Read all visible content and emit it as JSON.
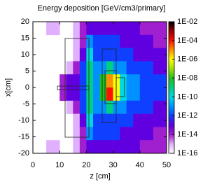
{
  "chart_data": {
    "type": "heatmap",
    "title": "Energy deposition [GeV/cm3/primary]",
    "x_label": "z [cm]",
    "y_label": "x[cm]",
    "xlim": [
      0,
      50
    ],
    "ylim": [
      -20,
      20
    ],
    "xticks": [
      0,
      10,
      20,
      30,
      40,
      50
    ],
    "yticks": [
      -20,
      -15,
      -10,
      -5,
      0,
      5,
      10,
      15,
      20
    ],
    "x": [
      1.25,
      3.75,
      6.25,
      8.75,
      11.25,
      13.75,
      16.25,
      18.75,
      21.25,
      23.75,
      26.25,
      28.75,
      31.25,
      33.75,
      36.25,
      38.75,
      41.25,
      43.75,
      46.25,
      48.75
    ],
    "y": [
      18,
      14,
      10,
      6,
      2,
      -2,
      -6,
      -10,
      -14,
      -18
    ],
    "values": [
      [
        null,
        null,
        1e-15,
        1e-15,
        null,
        null,
        1e-15,
        1e-14,
        1e-13,
        1e-13,
        1e-13,
        1e-13,
        1e-13,
        1e-13,
        1e-13,
        1e-13,
        1e-14,
        1e-14,
        1e-14,
        1e-14
      ],
      [
        null,
        null,
        null,
        null,
        null,
        null,
        1e-15,
        1e-14,
        1e-11,
        1e-12,
        1e-12,
        1e-12,
        1e-12,
        1e-13,
        1e-13,
        1e-13,
        1e-13,
        1e-13,
        1e-14,
        1e-14
      ],
      [
        null,
        null,
        null,
        null,
        null,
        null,
        1e-15,
        1e-13,
        1e-10,
        1e-12,
        1e-12,
        1e-12,
        1e-12,
        1e-12,
        1e-12,
        1e-13,
        1e-13,
        1e-13,
        1e-13,
        1e-13
      ],
      [
        null,
        null,
        null,
        null,
        null,
        1e-15,
        1e-14,
        1e-12,
        1e-09,
        1e-11,
        1e-11,
        1e-09,
        1e-11,
        1e-11,
        1e-12,
        1e-12,
        1e-12,
        1e-12,
        1e-13,
        1e-13
      ],
      [
        null,
        null,
        null,
        null,
        1e-14,
        1e-13,
        1e-13,
        1e-12,
        1e-09,
        1e-11,
        1e-08,
        1e-05,
        1e-06,
        1e-10,
        1e-11,
        1e-11,
        1e-12,
        1e-12,
        1e-12,
        1e-12
      ],
      [
        null,
        null,
        null,
        null,
        1e-14,
        1e-13,
        1e-13,
        1e-12,
        1e-09,
        1e-11,
        1e-08,
        0.0001,
        1e-06,
        1e-10,
        1e-11,
        1e-11,
        1e-12,
        1e-12,
        1e-12,
        1e-12
      ],
      [
        null,
        null,
        null,
        null,
        null,
        1e-15,
        1e-14,
        1e-12,
        1e-09,
        1e-11,
        1e-11,
        1e-09,
        1e-11,
        1e-11,
        1e-12,
        1e-12,
        1e-12,
        1e-12,
        1e-13,
        1e-13
      ],
      [
        null,
        null,
        null,
        null,
        null,
        null,
        1e-15,
        1e-13,
        1e-10,
        1e-12,
        1e-12,
        1e-12,
        1e-12,
        1e-12,
        1e-12,
        1e-13,
        1e-13,
        1e-13,
        1e-13,
        1e-13
      ],
      [
        null,
        null,
        null,
        null,
        null,
        null,
        1e-15,
        1e-14,
        1e-11,
        1e-12,
        1e-12,
        1e-12,
        1e-12,
        1e-13,
        1e-13,
        1e-13,
        1e-13,
        1e-13,
        1e-14,
        1e-14
      ],
      [
        null,
        null,
        1e-15,
        1e-15,
        null,
        null,
        1e-15,
        1e-14,
        1e-13,
        1e-13,
        1e-13,
        1e-13,
        1e-13,
        1e-13,
        1e-13,
        1e-13,
        1e-14,
        1e-14,
        1e-14,
        1e-14
      ]
    ],
    "log_scale": true,
    "clim": [
      1e-16,
      0.01
    ],
    "colormap": [
      "#ffffff",
      "#e0b0ff",
      "#a020d0",
      "#6000e0",
      "#1040ff",
      "#0090ff",
      "#00d8e0",
      "#00d080",
      "#20c020",
      "#a0e000",
      "#ffff00",
      "#ff9000",
      "#ff1000",
      "#a00000",
      "#000000"
    ],
    "colorbar_ticks": [
      {
        "value": 0.01,
        "label": "1E-02"
      },
      {
        "value": 0.0001,
        "label": "1E-04"
      },
      {
        "value": 1e-06,
        "label": "1E-06"
      },
      {
        "value": 1e-08,
        "label": "1E-08"
      },
      {
        "value": 1e-10,
        "label": "1E-10"
      },
      {
        "value": 1e-12,
        "label": "1E-12"
      },
      {
        "value": 1e-14,
        "label": "1E-14"
      },
      {
        "value": 1e-16,
        "label": "1E-16"
      }
    ]
  }
}
